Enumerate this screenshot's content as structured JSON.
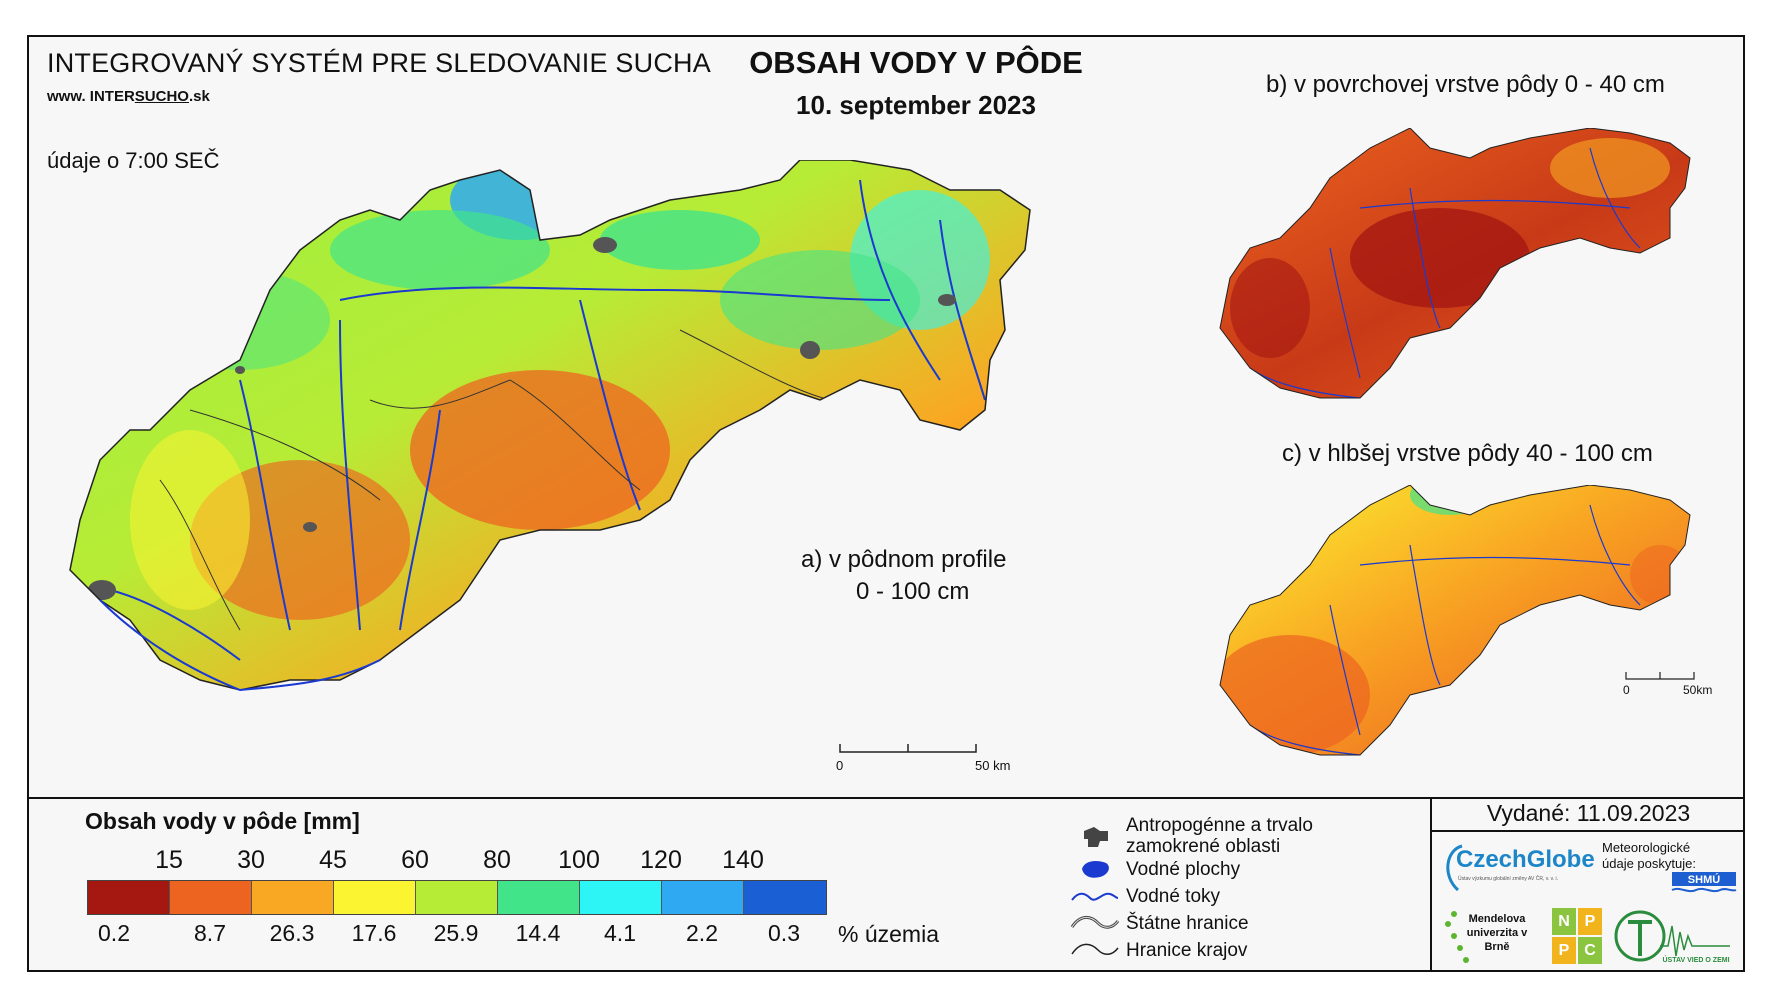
{
  "header": {
    "system_name": "INTEGROVANÝ SYSTÉM PRE SLEDOVANIE SUCHA",
    "website_prefix": "www. INTER",
    "website_emph": "SUCHO",
    "website_suffix": ".sk",
    "time_note": "údaje o 7:00 SEČ",
    "title": "OBSAH VODY V PÔDE",
    "date": "10. september 2023"
  },
  "maps": {
    "main_label_line1": "a) v pôdnom profile",
    "main_label_line2": "0 - 100 cm",
    "top_label": "b) v povrchovej vrstve pôdy 0 - 40 cm",
    "bottom_label": "c) v hlbšej vrstve pôdy 40 - 100 cm",
    "main_scale": {
      "start": "0",
      "end": "50 km"
    },
    "small_scale": {
      "start": "0",
      "end": "50km"
    }
  },
  "legend": {
    "title": "Obsah vody v pôde  [mm]",
    "thresholds": [
      "15",
      "30",
      "45",
      "60",
      "80",
      "100",
      "120",
      "140"
    ],
    "classes": [
      {
        "color": "#a51812",
        "percent": "0.2"
      },
      {
        "color": "#ed6420",
        "percent": "8.7"
      },
      {
        "color": "#f9a823",
        "percent": "26.3"
      },
      {
        "color": "#fbf431",
        "percent": "17.6"
      },
      {
        "color": "#b7ec36",
        "percent": "25.9"
      },
      {
        "color": "#42e48a",
        "percent": "14.4"
      },
      {
        "color": "#2ef5f5",
        "percent": "4.1"
      },
      {
        "color": "#2fa9f2",
        "percent": "2.2"
      },
      {
        "color": "#1a5fd3",
        "percent": "0.3"
      }
    ],
    "percent_unit": "% územia"
  },
  "symbols": [
    {
      "icon": "anthropogenic-area-icon",
      "line1": "Antropogénne a trvalo",
      "line2": "zamokrené oblasti"
    },
    {
      "icon": "water-body-icon",
      "line1": "Vodné plochy"
    },
    {
      "icon": "river-icon",
      "line1": "Vodné toky"
    },
    {
      "icon": "state-border-icon",
      "line1": "Štátne hranice"
    },
    {
      "icon": "region-border-icon",
      "line1": "Hranice krajov"
    }
  ],
  "issued": "Vydané: 11.09.2023",
  "logos": {
    "czechglobe": "CzechGlobe",
    "czechglobe_sub": "Ústav výzkumu globální změny AV ČR, v. v. i.",
    "met_data": "Meteorologické údaje poskytuje:",
    "shmu": "SHMÚ",
    "mendel": "Mendelova univerzita v Brně",
    "nppc": [
      "N",
      "P",
      "P",
      "C"
    ],
    "uvz": "ÚSTAV VIED O ZEMI"
  }
}
